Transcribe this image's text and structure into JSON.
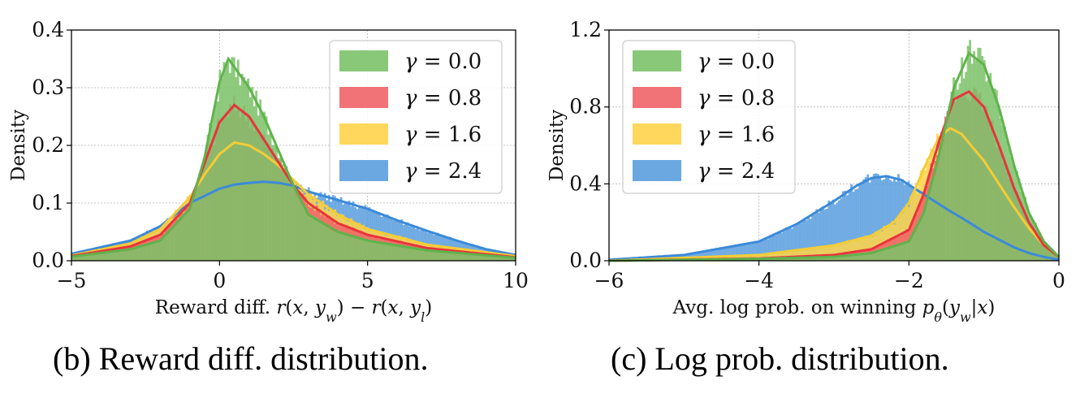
{
  "captions": {
    "b": "(b) Reward diff. distribution.",
    "c": "(c) Log prob. distribution."
  },
  "colors": {
    "g0": "#7cc26a",
    "g08": "#f06468",
    "g16": "#ffd34a",
    "g24": "#5b9fde",
    "line_g0": "#5fb34c",
    "line_g08": "#e8343c",
    "line_g16": "#f5cc35",
    "line_g24": "#3c8ad9"
  },
  "chart_data": [
    {
      "type": "area",
      "xlabel": "Reward diff. r(x, y_w) − r(x, y_l)",
      "ylabel": "Density",
      "xlim": [
        -5,
        10
      ],
      "ylim": [
        0,
        0.4
      ],
      "xticks": [
        -5,
        0,
        5,
        10
      ],
      "yticks": [
        0.0,
        0.1,
        0.2,
        0.3,
        0.4
      ],
      "xtick_labels": [
        "−5",
        "0",
        "5",
        "10"
      ],
      "ytick_labels": [
        "0.0",
        "0.1",
        "0.2",
        "0.3",
        "0.4"
      ],
      "grid": true,
      "legend_position": "top-right",
      "series": [
        {
          "name": "γ = 0.0",
          "x": [
            -5,
            -3,
            -2,
            -1,
            -0.5,
            0,
            0.3,
            1,
            1.5,
            2,
            2.5,
            3,
            4,
            5,
            7,
            10
          ],
          "y": [
            0.007,
            0.02,
            0.035,
            0.09,
            0.18,
            0.31,
            0.35,
            0.3,
            0.25,
            0.19,
            0.13,
            0.08,
            0.05,
            0.035,
            0.018,
            0.005
          ]
        },
        {
          "name": "γ = 0.8",
          "x": [
            -5,
            -3,
            -2,
            -1,
            -0.5,
            0,
            0.5,
            1,
            1.5,
            2,
            2.5,
            3,
            4,
            5,
            7,
            10
          ],
          "y": [
            0.008,
            0.025,
            0.045,
            0.1,
            0.17,
            0.24,
            0.27,
            0.25,
            0.21,
            0.17,
            0.13,
            0.1,
            0.065,
            0.045,
            0.022,
            0.006
          ]
        },
        {
          "name": "γ = 1.6",
          "x": [
            -5,
            -3,
            -2,
            -1,
            -0.5,
            0,
            0.5,
            1,
            1.5,
            2,
            2.5,
            3,
            4,
            5,
            7,
            10
          ],
          "y": [
            0.009,
            0.03,
            0.055,
            0.11,
            0.15,
            0.185,
            0.205,
            0.2,
            0.185,
            0.165,
            0.14,
            0.115,
            0.08,
            0.055,
            0.028,
            0.008
          ]
        },
        {
          "name": "γ = 2.4",
          "x": [
            -5,
            -3,
            -2,
            -1,
            0,
            0.5,
            1,
            1.5,
            2,
            2.5,
            3,
            4,
            5,
            6,
            7,
            8,
            9,
            10
          ],
          "y": [
            0.012,
            0.035,
            0.06,
            0.1,
            0.125,
            0.132,
            0.135,
            0.137,
            0.135,
            0.13,
            0.12,
            0.105,
            0.09,
            0.07,
            0.052,
            0.035,
            0.02,
            0.01
          ]
        }
      ]
    },
    {
      "type": "area",
      "xlabel": "Avg. log prob. on winning p_θ(y_w|x)",
      "ylabel": "Density",
      "xlim": [
        -6,
        0
      ],
      "ylim": [
        0,
        1.2
      ],
      "xticks": [
        -6,
        -4,
        -2,
        0
      ],
      "yticks": [
        0.0,
        0.4,
        0.8,
        1.2
      ],
      "xtick_labels": [
        "−6",
        "−4",
        "−2",
        "0"
      ],
      "ytick_labels": [
        "0.0",
        "0.4",
        "0.8",
        "1.2"
      ],
      "grid": true,
      "legend_position": "top-left",
      "series": [
        {
          "name": "γ = 0.0",
          "x": [
            -6,
            -4,
            -3,
            -2.5,
            -2,
            -1.8,
            -1.6,
            -1.4,
            -1.2,
            -1.0,
            -0.8,
            -0.6,
            -0.4,
            -0.2,
            0
          ],
          "y": [
            0.0,
            0.01,
            0.02,
            0.04,
            0.1,
            0.25,
            0.55,
            0.9,
            1.08,
            1.02,
            0.8,
            0.5,
            0.25,
            0.1,
            0.02
          ]
        },
        {
          "name": "γ = 0.8",
          "x": [
            -6,
            -4,
            -3,
            -2.5,
            -2,
            -1.8,
            -1.6,
            -1.4,
            -1.2,
            -1.0,
            -0.8,
            -0.6,
            -0.4,
            -0.2,
            0
          ],
          "y": [
            0.0,
            0.012,
            0.03,
            0.06,
            0.16,
            0.35,
            0.62,
            0.84,
            0.88,
            0.8,
            0.6,
            0.38,
            0.2,
            0.08,
            0.02
          ]
        },
        {
          "name": "γ = 1.6",
          "x": [
            -6,
            -4,
            -3,
            -2.5,
            -2.2,
            -2,
            -1.8,
            -1.6,
            -1.45,
            -1.3,
            -1.0,
            -0.8,
            -0.6,
            -0.4,
            -0.2,
            0
          ],
          "y": [
            0.0,
            0.03,
            0.08,
            0.13,
            0.2,
            0.3,
            0.48,
            0.64,
            0.69,
            0.66,
            0.52,
            0.4,
            0.28,
            0.17,
            0.08,
            0.02
          ]
        },
        {
          "name": "γ = 2.4",
          "x": [
            -6,
            -5,
            -4,
            -3.5,
            -3,
            -2.7,
            -2.5,
            -2.3,
            -2.1,
            -1.9,
            -1.7,
            -1.5,
            -1.2,
            -1.0,
            -0.8,
            -0.6,
            -0.4,
            -0.2,
            0
          ],
          "y": [
            0.005,
            0.03,
            0.1,
            0.19,
            0.31,
            0.39,
            0.43,
            0.44,
            0.42,
            0.37,
            0.32,
            0.27,
            0.2,
            0.15,
            0.11,
            0.07,
            0.04,
            0.02,
            0.005
          ]
        }
      ]
    }
  ]
}
